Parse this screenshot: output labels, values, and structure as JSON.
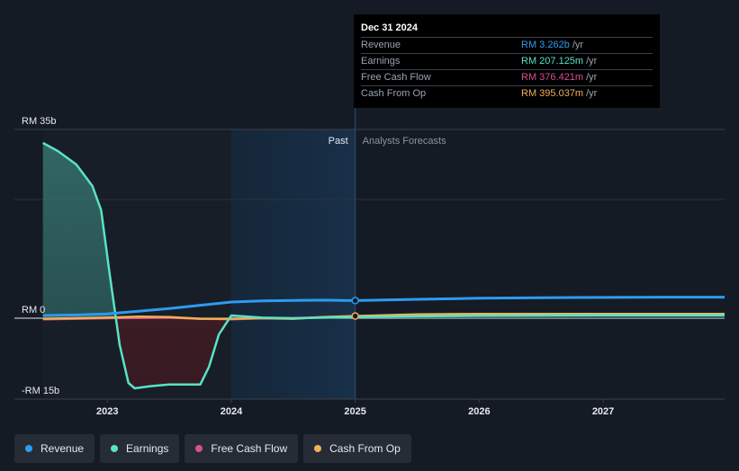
{
  "chart_data": {
    "type": "area",
    "x_unit": "year",
    "y_unit": "RM billions",
    "ylim": [
      -15,
      35
    ],
    "y_ticks": [
      {
        "value": 35,
        "label": "RM 35b"
      },
      {
        "value": 0,
        "label": "RM 0"
      },
      {
        "value": -15,
        "label": "-RM 15b"
      }
    ],
    "x_ticks": [
      {
        "value": 2023,
        "label": "2023"
      },
      {
        "value": 2024,
        "label": "2024"
      },
      {
        "value": 2025,
        "label": "2025"
      },
      {
        "value": 2026,
        "label": "2026"
      },
      {
        "value": 2027,
        "label": "2027"
      }
    ],
    "xlim": [
      2022.25,
      2027.98
    ],
    "divider_x": 2025.0,
    "past_shade_start": 2024.0,
    "past_label": "Past",
    "forecast_label": "Analysts Forecasts",
    "series": [
      {
        "name": "Revenue",
        "color": "#2d9bf0",
        "x": [
          2022.48,
          2022.75,
          2023.0,
          2023.25,
          2023.5,
          2023.75,
          2024.0,
          2024.25,
          2024.5,
          2024.75,
          2025.0,
          2025.5,
          2026.0,
          2026.5,
          2027.0,
          2027.5,
          2027.98
        ],
        "y": [
          0.5,
          0.6,
          0.8,
          1.3,
          1.8,
          2.4,
          3.0,
          3.2,
          3.3,
          3.35,
          3.262,
          3.5,
          3.7,
          3.8,
          3.85,
          3.9,
          3.9
        ]
      },
      {
        "name": "Earnings",
        "color": "#59e3c5",
        "x": [
          2022.48,
          2022.6,
          2022.75,
          2022.88,
          2022.95,
          2023.02,
          2023.1,
          2023.17,
          2023.22,
          2023.35,
          2023.5,
          2023.65,
          2023.75,
          2023.82,
          2023.9,
          2024.0,
          2024.25,
          2024.5,
          2024.75,
          2025.0,
          2025.5,
          2026.0,
          2026.5,
          2027.0,
          2027.5,
          2027.98
        ],
        "y": [
          32.5,
          31.0,
          28.5,
          24.5,
          20.0,
          8.0,
          -5.0,
          -12.0,
          -13.0,
          -12.6,
          -12.3,
          -12.3,
          -12.3,
          -9.0,
          -3.0,
          0.5,
          0.1,
          0.0,
          0.1,
          0.207,
          0.35,
          0.45,
          0.5,
          0.55,
          0.55,
          0.55
        ]
      },
      {
        "name": "Free Cash Flow",
        "color": "#d94f8f",
        "x": [
          2022.48,
          2022.75,
          2023.0,
          2023.25,
          2023.5,
          2023.75,
          2024.0,
          2024.25,
          2024.5,
          2024.75,
          2025.0
        ],
        "y": [
          -0.2,
          -0.1,
          0.0,
          0.05,
          0.1,
          -0.1,
          -0.2,
          0.0,
          0.0,
          0.2,
          0.376
        ]
      },
      {
        "name": "Cash From Op",
        "color": "#f0b056",
        "x": [
          2022.48,
          2022.75,
          2023.0,
          2023.25,
          2023.5,
          2023.75,
          2024.0,
          2024.25,
          2024.5,
          2024.75,
          2025.0,
          2025.5,
          2026.0,
          2026.5,
          2027.0,
          2027.5,
          2027.98
        ],
        "y": [
          -0.1,
          0.0,
          0.1,
          0.3,
          0.2,
          -0.1,
          -0.1,
          0.0,
          -0.1,
          0.2,
          0.395,
          0.7,
          0.8,
          0.8,
          0.8,
          0.8,
          0.8
        ]
      }
    ],
    "highlight": {
      "x": 2025.0,
      "series": [
        "Revenue",
        "Cash From Op"
      ]
    }
  },
  "tooltip": {
    "date": "Dec 31 2024",
    "rows": [
      {
        "label": "Revenue",
        "value": "RM 3.262b",
        "unit": "/yr",
        "color": "#2d9bf0"
      },
      {
        "label": "Earnings",
        "value": "RM 207.125m",
        "unit": "/yr",
        "color": "#59e3c5"
      },
      {
        "label": "Free Cash Flow",
        "value": "RM 376.421m",
        "unit": "/yr",
        "color": "#d94f8f"
      },
      {
        "label": "Cash From Op",
        "value": "RM 395.037m",
        "unit": "/yr",
        "color": "#f0b056"
      }
    ]
  },
  "legend": [
    {
      "label": "Revenue",
      "color": "#2d9bf0"
    },
    {
      "label": "Earnings",
      "color": "#59e3c5"
    },
    {
      "label": "Free Cash Flow",
      "color": "#d94f8f"
    },
    {
      "label": "Cash From Op",
      "color": "#f0b056"
    }
  ]
}
